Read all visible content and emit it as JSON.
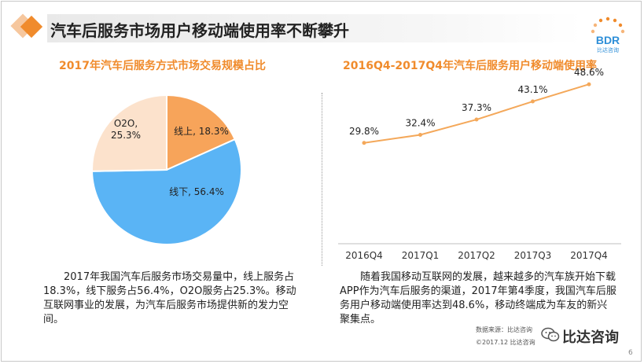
{
  "header": {
    "title": "汽车后服务市场用户移动端使用率不断攀升",
    "logo_text": "BDR",
    "logo_subtext": "比达咨询"
  },
  "colors": {
    "accent": "#f08b2c",
    "pie_online": "#f7a45a",
    "pie_offline": "#5ab4f5",
    "pie_o2o": "#fce2cc",
    "line": "#f4a85a"
  },
  "chart_data": [
    {
      "type": "pie",
      "title": "2017年汽车后服务方式市场交易规模占比",
      "slices": [
        {
          "label": "线上",
          "value": 18.3,
          "display": "线上, 18.3%"
        },
        {
          "label": "线下",
          "value": 56.4,
          "display": "线下, 56.4%"
        },
        {
          "label": "O2O",
          "value": 25.3,
          "display": "O2O,\n25.3%"
        }
      ],
      "unit": "%"
    },
    {
      "type": "line",
      "title": "2016Q4-2017Q4年汽车后服务用户移动端使用率",
      "categories": [
        "2016Q4",
        "2017Q1",
        "2017Q2",
        "2017Q3",
        "2017Q4"
      ],
      "series": [
        {
          "name": "移动端使用率",
          "values": [
            29.8,
            32.4,
            37.3,
            43.1,
            48.6
          ],
          "labels": [
            "29.8%",
            "32.4%",
            "37.3%",
            "43.1%",
            "48.6%"
          ]
        }
      ],
      "ylim": [
        0,
        60
      ],
      "grid": false,
      "legend": "none"
    }
  ],
  "left_desc": "2017年我国汽车后服务市场交易量中，线上服务占18.3%，线下服务占56.4%，O2O服务占25.3%。移动互联网事业的发展，为汽车后服务市场提供新的发力空间。",
  "right_desc": "随着我国移动互联网的发展，越来越多的汽车族开始下载APP作为汽车后服务的渠道，2017年第4季度，我国汽车后服务用户移动端使用率达到48.6%，移动终端成为车友的新兴聚集点。",
  "footer": {
    "source": "数据来源：比达咨询",
    "copyright": "©2017.12 比达咨询"
  },
  "watermark": "比达咨询",
  "page_number": "6"
}
